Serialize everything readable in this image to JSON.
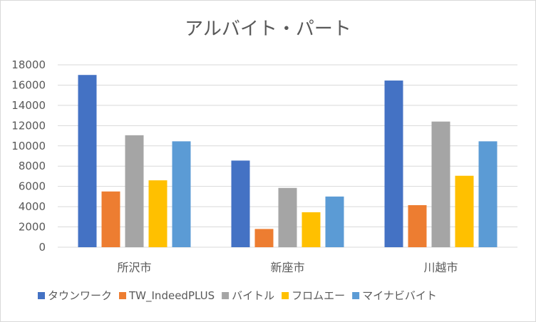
{
  "chart_data": {
    "type": "bar",
    "title": "アルバイト・パート",
    "categories": [
      "所沢市",
      "新座市",
      "川越市"
    ],
    "series": [
      {
        "name": "タウンワーク",
        "color": "#4472c4",
        "values": [
          17000,
          8550,
          16450
        ]
      },
      {
        "name": "TW_IndeedPLUS",
        "color": "#ed7d31",
        "values": [
          5500,
          1800,
          4150
        ]
      },
      {
        "name": "バイトル",
        "color": "#a5a5a5",
        "values": [
          11050,
          5850,
          12400
        ]
      },
      {
        "name": "フロムエー",
        "color": "#ffc000",
        "values": [
          6600,
          3450,
          7050
        ]
      },
      {
        "name": "マイナビバイト",
        "color": "#5b9bd5",
        "values": [
          10450,
          5000,
          10450
        ]
      }
    ],
    "ylim": [
      0,
      18000
    ],
    "yticks": [
      0,
      2000,
      4000,
      6000,
      8000,
      10000,
      12000,
      14000,
      16000,
      18000
    ],
    "grid": true,
    "legend_position": "bottom"
  }
}
